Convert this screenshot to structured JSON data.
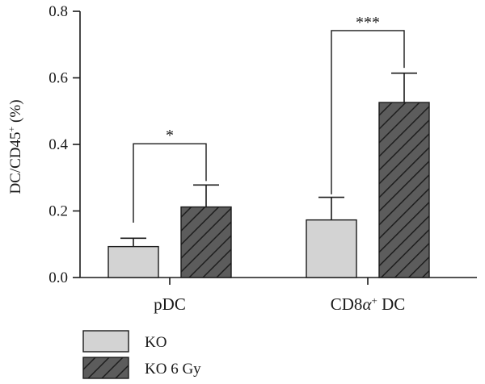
{
  "chart_data": {
    "type": "bar",
    "ylabel_main": "DC/CD45",
    "ylabel_sup": "+",
    "ylabel_unit": " (%)",
    "ylim": [
      0,
      0.8
    ],
    "yticks": [
      "0.0",
      "0.2",
      "0.4",
      "0.6",
      "0.8"
    ],
    "ytick_values": [
      0.0,
      0.2,
      0.4,
      0.6,
      0.8
    ],
    "categories": [
      {
        "main": "pDC",
        "greek": "",
        "sup": "",
        "tail": ""
      },
      {
        "main": "CD8",
        "greek": "α",
        "sup": "+",
        "tail": " DC"
      }
    ],
    "series": [
      {
        "name": "KO",
        "values": [
          0.093,
          0.173
        ],
        "errors": [
          0.025,
          0.068
        ],
        "fill": "#d3d3d3",
        "pattern": "solid"
      },
      {
        "name": "KO 6 Gy",
        "values": [
          0.212,
          0.526
        ],
        "errors": [
          0.066,
          0.088
        ],
        "fill": "#5c5c5c",
        "pattern": "hatch"
      }
    ],
    "significance": [
      {
        "category_index": 0,
        "label": "*",
        "bracket_y": 0.402,
        "left_leg_y": 0.165,
        "right_leg_y": 0.29
      },
      {
        "category_index": 1,
        "label": "***",
        "bracket_y": 0.742,
        "left_leg_y": 0.25,
        "right_leg_y": 0.63
      }
    ],
    "grid": false,
    "legend": "bottom-left"
  }
}
